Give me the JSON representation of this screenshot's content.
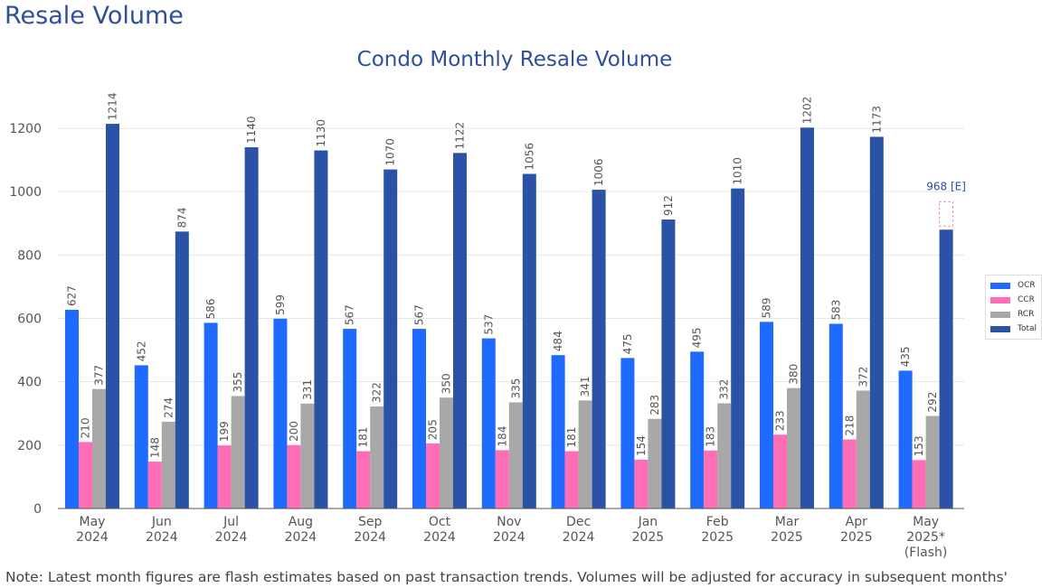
{
  "page_title": "Resale Volume",
  "note": "Note: Latest month figures are flash estimates based on past transaction trends. Volumes will be adjusted for accuracy in subsequent months'",
  "chart_data": {
    "type": "bar",
    "title": "Condo Monthly Resale Volume",
    "xlabel": "",
    "ylabel": "",
    "ylim": [
      0,
      1300
    ],
    "yticks": [
      0,
      200,
      400,
      600,
      800,
      1000,
      1200
    ],
    "grid": true,
    "legend_placement": "right",
    "categories": [
      [
        "May",
        "2024"
      ],
      [
        "Jun",
        "2024"
      ],
      [
        "Jul",
        "2024"
      ],
      [
        "Aug",
        "2024"
      ],
      [
        "Sep",
        "2024"
      ],
      [
        "Oct",
        "2024"
      ],
      [
        "Nov",
        "2024"
      ],
      [
        "Dec",
        "2024"
      ],
      [
        "Jan",
        "2025"
      ],
      [
        "Feb",
        "2025"
      ],
      [
        "Mar",
        "2025"
      ],
      [
        "Apr",
        "2025"
      ],
      [
        "May",
        "2025*",
        "(Flash)"
      ]
    ],
    "series": [
      {
        "name": "OCR",
        "color": "#1f6bff",
        "values": [
          627,
          452,
          586,
          599,
          567,
          567,
          537,
          484,
          475,
          495,
          589,
          583,
          435
        ]
      },
      {
        "name": "CCR",
        "color": "#ff6eb4",
        "values": [
          210,
          148,
          199,
          200,
          181,
          205,
          184,
          181,
          154,
          183,
          233,
          218,
          153
        ]
      },
      {
        "name": "RCR",
        "color": "#a8a8a8",
        "values": [
          377,
          274,
          355,
          331,
          322,
          350,
          335,
          341,
          283,
          332,
          380,
          372,
          292
        ]
      },
      {
        "name": "Total",
        "color": "#2a52a6",
        "values": [
          1214,
          874,
          1140,
          1130,
          1070,
          1122,
          1056,
          1006,
          912,
          1010,
          1202,
          1173,
          880
        ]
      }
    ],
    "hidden_labels": {
      "Total": [
        12
      ]
    },
    "estimate": {
      "category_index": 12,
      "value": 968,
      "label": "968 [E]",
      "color": "#e86aa8"
    }
  }
}
